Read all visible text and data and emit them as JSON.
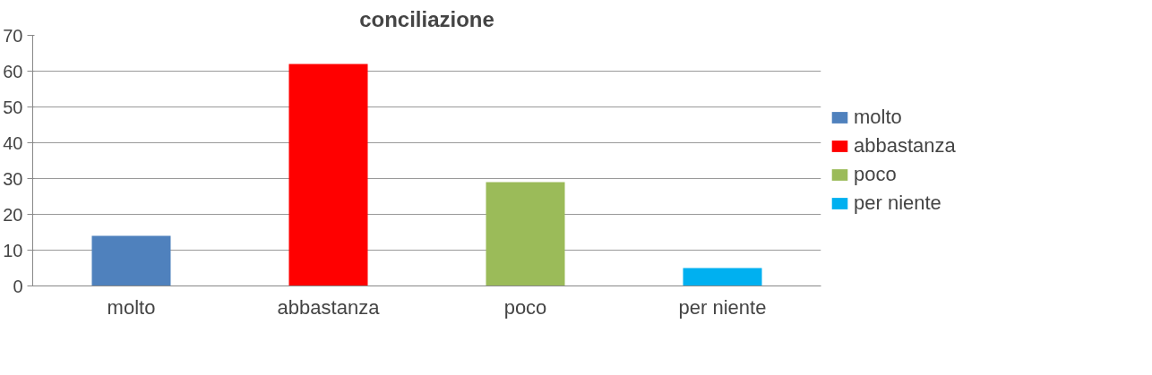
{
  "chart_data": {
    "type": "bar",
    "title": "conciliazione",
    "categories": [
      "molto",
      "abbastanza",
      "poco",
      "per niente"
    ],
    "series": [
      {
        "name": "molto",
        "color": "#4f81bd",
        "values": [
          14,
          null,
          null,
          null
        ]
      },
      {
        "name": "abbastanza",
        "color": "#ff0000",
        "values": [
          null,
          62,
          null,
          null
        ]
      },
      {
        "name": "poco",
        "color": "#9bbb59",
        "values": [
          null,
          null,
          29,
          null
        ]
      },
      {
        "name": "per niente",
        "color": "#00b0f0",
        "values": [
          null,
          null,
          null,
          5
        ]
      }
    ],
    "ylim": [
      0,
      70
    ],
    "yticks": [
      0,
      10,
      20,
      30,
      40,
      50,
      60,
      70
    ],
    "grid": "y",
    "legend": "right"
  }
}
